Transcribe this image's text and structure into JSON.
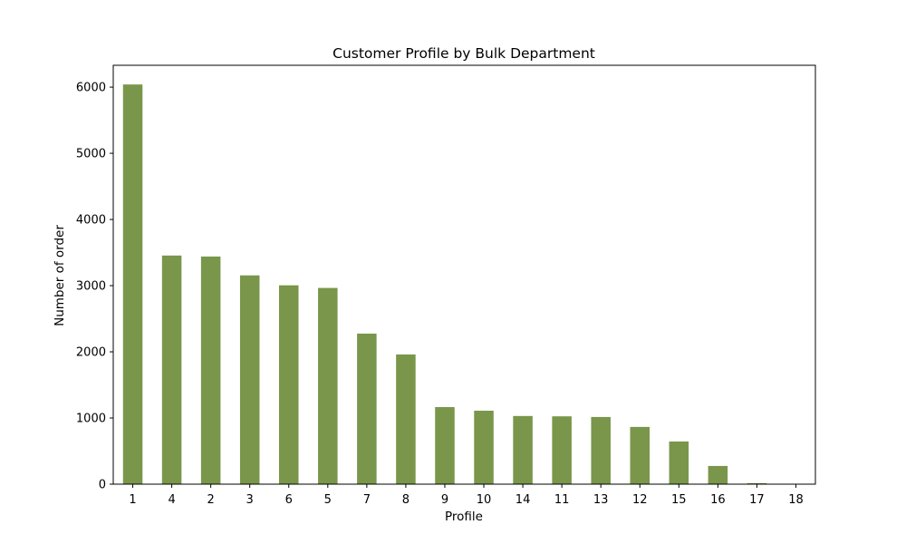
{
  "chart_data": {
    "type": "bar",
    "title": "Customer Profile by Bulk Department",
    "xlabel": "Profile",
    "ylabel": "Number of order",
    "categories": [
      "1",
      "4",
      "2",
      "3",
      "6",
      "5",
      "7",
      "8",
      "9",
      "10",
      "14",
      "11",
      "13",
      "12",
      "15",
      "16",
      "17",
      "18"
    ],
    "values": [
      6040,
      3455,
      3440,
      3155,
      3005,
      2965,
      2275,
      1960,
      1165,
      1110,
      1030,
      1025,
      1015,
      865,
      645,
      275,
      15,
      3
    ],
    "ylim": [
      0,
      6330
    ],
    "yticks": [
      0,
      1000,
      2000,
      3000,
      4000,
      5000,
      6000
    ],
    "color": "#79964b",
    "grid": false,
    "legend": "none"
  }
}
